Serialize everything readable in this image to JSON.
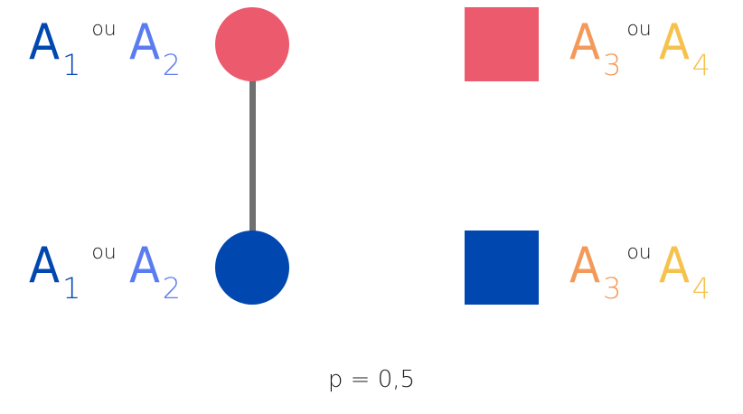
{
  "colors": {
    "a1": "#0047b0",
    "a2": "#5b7cf0",
    "a3": "#f39a5a",
    "a4": "#f6c24e",
    "pink_node": "#ec5a6e",
    "blue_node": "#0047b0",
    "edge": "#707070"
  },
  "left_labels": [
    {
      "first": "A",
      "first_sub": "1",
      "connector": "ou",
      "second": "A",
      "second_sub": "2"
    },
    {
      "first": "A",
      "first_sub": "1",
      "connector": "ou",
      "second": "A",
      "second_sub": "2"
    }
  ],
  "right_labels": [
    {
      "first": "A",
      "first_sub": "3",
      "connector": "ou",
      "second": "A",
      "second_sub": "4"
    },
    {
      "first": "A",
      "first_sub": "3",
      "connector": "ou",
      "second": "A",
      "second_sub": "4"
    }
  ],
  "caption": "p = 0,5"
}
